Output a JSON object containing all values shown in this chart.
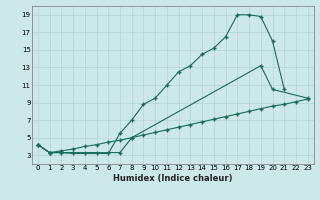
{
  "xlabel": "Humidex (Indice chaleur)",
  "background_color": "#cce8e8",
  "grid_color": "#b8d8d8",
  "line_color": "#1a6b5a",
  "xlim": [
    -0.5,
    23.5
  ],
  "ylim": [
    2,
    20
  ],
  "xticks": [
    0,
    1,
    2,
    3,
    4,
    5,
    6,
    7,
    8,
    9,
    10,
    11,
    12,
    13,
    14,
    15,
    16,
    17,
    18,
    19,
    20,
    21,
    22,
    23
  ],
  "yticks": [
    3,
    5,
    7,
    9,
    11,
    13,
    15,
    17,
    19
  ],
  "line1_x": [
    0,
    1,
    2,
    3,
    4,
    5,
    6,
    7,
    8,
    9,
    10,
    11,
    12,
    13,
    14,
    15,
    16,
    17,
    18,
    19,
    20,
    21
  ],
  "line1_y": [
    4.2,
    3.3,
    3.3,
    3.2,
    3.2,
    3.2,
    3.2,
    5.5,
    7.0,
    8.8,
    9.5,
    11.0,
    12.5,
    13.2,
    14.5,
    15.2,
    16.5,
    19.0,
    19.0,
    18.8,
    16.0,
    10.5
  ],
  "line2_x": [
    0,
    1,
    7,
    8,
    19,
    20,
    23
  ],
  "line2_y": [
    4.2,
    3.3,
    3.3,
    5.0,
    13.2,
    10.5,
    9.5
  ],
  "line3_x": [
    0,
    1,
    2,
    3,
    4,
    5,
    6,
    7,
    8,
    9,
    10,
    11,
    12,
    13,
    14,
    15,
    16,
    17,
    18,
    19,
    20,
    21,
    22,
    23
  ],
  "line3_y": [
    4.2,
    3.3,
    3.5,
    3.7,
    4.0,
    4.2,
    4.5,
    4.7,
    5.0,
    5.3,
    5.6,
    5.9,
    6.2,
    6.5,
    6.8,
    7.1,
    7.4,
    7.7,
    8.0,
    8.3,
    8.6,
    8.8,
    9.1,
    9.4
  ]
}
